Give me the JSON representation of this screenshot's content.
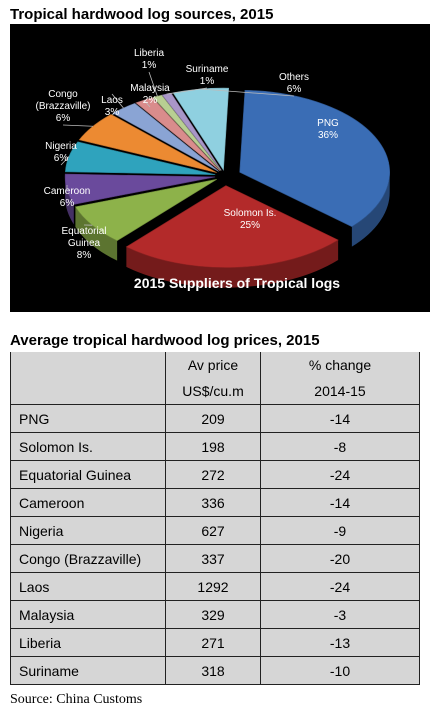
{
  "pie_title": "Tropical hardwood log sources, 2015",
  "table_title": "Average tropical hardwood log prices, 2015",
  "table": {
    "headers": [
      [
        "",
        "Av price",
        "% change"
      ],
      [
        "",
        "US$/cu.m",
        "2014-15"
      ]
    ],
    "rows": [
      [
        "PNG",
        "209",
        "-14"
      ],
      [
        "Solomon Is.",
        "198",
        "-8"
      ],
      [
        "Equatorial Guinea",
        "272",
        "-24"
      ],
      [
        "Cameroon",
        "336",
        "-14"
      ],
      [
        "Nigeria",
        "627",
        "-9"
      ],
      [
        "Congo (Brazzaville)",
        "337",
        "-20"
      ],
      [
        "Laos",
        "1292",
        "-24"
      ],
      [
        "Malaysia",
        "329",
        "-3"
      ],
      [
        "Liberia",
        "271",
        "-13"
      ],
      [
        "Suriname",
        "318",
        "-10"
      ]
    ]
  },
  "source": "Source: China Customs",
  "chart_data": [
    {
      "type": "pie",
      "title": "2015 Suppliers of Tropical logs",
      "slices": [
        {
          "label": "PNG",
          "value": 36,
          "value_label": "36%",
          "color": "#3a6db5"
        },
        {
          "label": "Solomon Is.",
          "value": 25,
          "value_label": "25%",
          "color": "#b32a2a"
        },
        {
          "label": "Equatorial Guinea",
          "label_lines": [
            "Equatorial",
            "Guinea"
          ],
          "value": 8,
          "value_label": "8%",
          "color": "#8db24a"
        },
        {
          "label": "Cameroon",
          "value": 6,
          "value_label": "6%",
          "color": "#6a4a9c"
        },
        {
          "label": "Nigeria",
          "value": 6,
          "value_label": "6%",
          "color": "#2fa3bd"
        },
        {
          "label": "Congo (Brazzaville)",
          "label_lines": [
            "Congo",
            "(Brazzaville)"
          ],
          "value": 6,
          "value_label": "6%",
          "color": "#ec8a32"
        },
        {
          "label": "Laos",
          "value": 3,
          "value_label": "3%",
          "color": "#8aa4d4"
        },
        {
          "label": "Malaysia",
          "value": 2,
          "value_label": "2%",
          "color": "#d98c8c"
        },
        {
          "label": "Liberia",
          "value": 1,
          "value_label": "1%",
          "color": "#b8cf92"
        },
        {
          "label": "Suriname",
          "value": 1,
          "value_label": "1%",
          "color": "#a996c8"
        },
        {
          "label": "Others",
          "value": 6,
          "value_label": "6%",
          "color": "#8fd0e0"
        }
      ]
    },
    {
      "type": "table",
      "title": "Average tropical hardwood log prices, 2015",
      "columns": [
        "Av price US$/cu.m",
        "% change 2014-15"
      ],
      "rows": [
        "PNG",
        "Solomon Is.",
        "Equatorial Guinea",
        "Cameroon",
        "Nigeria",
        "Congo (Brazzaville)",
        "Laos",
        "Malaysia",
        "Liberia",
        "Suriname"
      ],
      "av_price": [
        209,
        198,
        272,
        336,
        627,
        337,
        1292,
        329,
        271,
        318
      ],
      "pct_change": [
        -14,
        -8,
        -24,
        -14,
        -9,
        -20,
        -24,
        -3,
        -13,
        -10
      ]
    }
  ]
}
